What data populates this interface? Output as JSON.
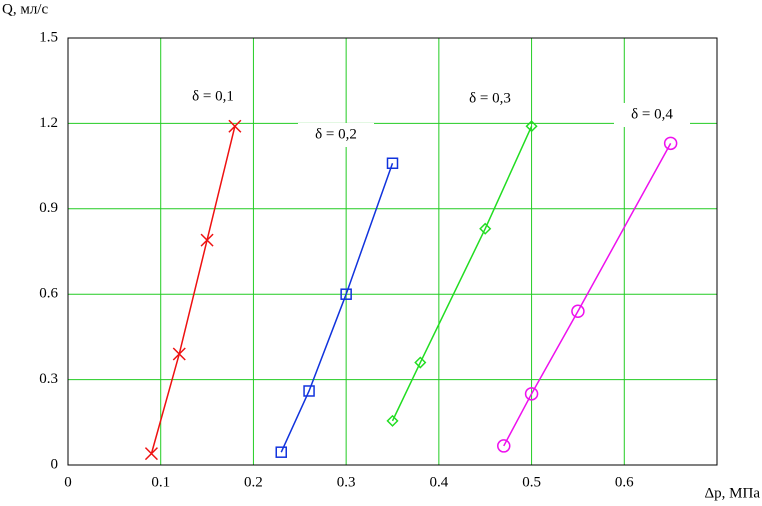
{
  "chart_data": {
    "type": "line",
    "y_label": "Q, мл/с",
    "x_label": "Δp, МПа",
    "xlim": [
      0,
      0.7
    ],
    "xticks": [
      0,
      0.1,
      0.2,
      0.3,
      0.4,
      0.5,
      0.6
    ],
    "ylim": [
      0,
      1.5
    ],
    "yticks": [
      0,
      0.3,
      0.6,
      0.9,
      1.2,
      1.5
    ],
    "grid": true,
    "series": [
      {
        "name": "δ = 0,1",
        "color": "#ee1111",
        "marker": "x",
        "x": [
          0.09,
          0.12,
          0.15,
          0.18
        ],
        "values": [
          0.04,
          0.39,
          0.79,
          1.19
        ]
      },
      {
        "name": "δ = 0,2",
        "color": "#1133dd",
        "marker": "square",
        "x": [
          0.23,
          0.26,
          0.3,
          0.35
        ],
        "values": [
          0.045,
          0.26,
          0.6,
          1.06
        ]
      },
      {
        "name": "δ = 0,3",
        "color": "#22dd22",
        "marker": "diamond",
        "x": [
          0.35,
          0.38,
          0.45,
          0.5
        ],
        "values": [
          0.155,
          0.36,
          0.83,
          1.19
        ]
      },
      {
        "name": "δ = 0,4",
        "color": "#ee11ee",
        "marker": "circle",
        "x": [
          0.47,
          0.5,
          0.55,
          0.65
        ],
        "values": [
          0.067,
          0.25,
          0.54,
          1.13
        ]
      }
    ]
  }
}
